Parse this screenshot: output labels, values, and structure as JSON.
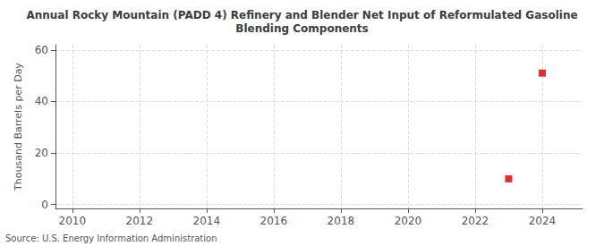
{
  "chart_data": {
    "type": "scatter",
    "title": "Annual Rocky Mountain (PADD 4) Refinery and Blender Net Input of Reformulated Gasoline\nBlending Components",
    "ylabel": "Thousand Barrels per Day",
    "source": "Source: U.S. Energy Information Administration",
    "x": [
      2023,
      2024
    ],
    "values": [
      10,
      51
    ],
    "color": "#cc0000",
    "marker": "square",
    "xlim": [
      2009.5,
      2025.2
    ],
    "xticks": [
      2010,
      2012,
      2014,
      2016,
      2018,
      2020,
      2022,
      2024
    ],
    "ylim": [
      -1.5,
      62
    ],
    "yticks": [
      0,
      20,
      40,
      60
    ],
    "grid": true
  }
}
